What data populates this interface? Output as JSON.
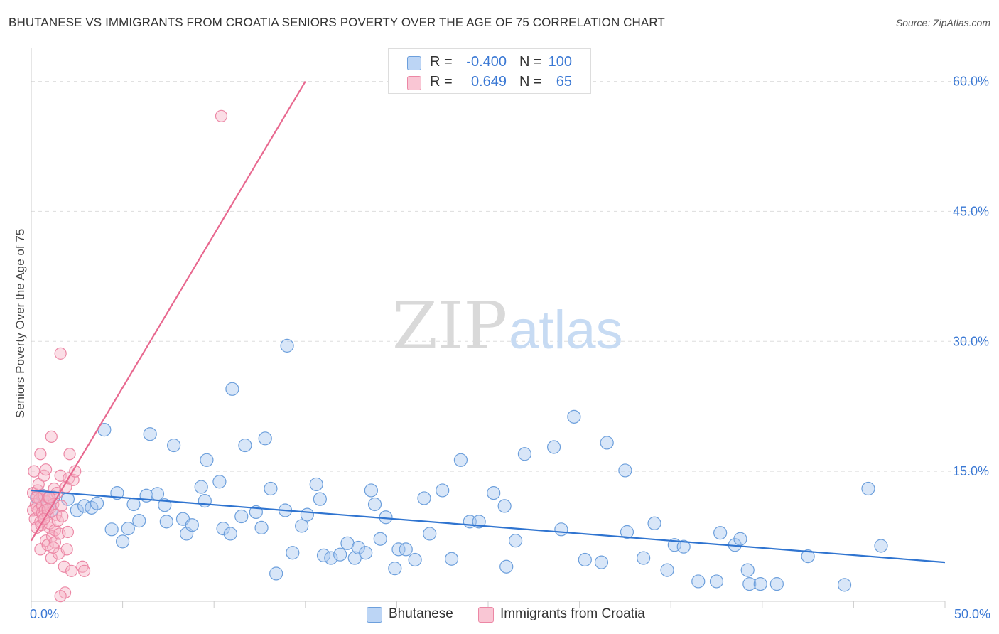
{
  "title": "BHUTANESE VS IMMIGRANTS FROM CROATIA SENIORS POVERTY OVER THE AGE OF 75 CORRELATION CHART",
  "source": "Source: ZipAtlas.com",
  "watermark": {
    "zip": "ZIP",
    "atlas": "atlas"
  },
  "legend": {
    "rows": [
      {
        "r_label": "R =",
        "r_value": "-0.400",
        "n_label": "N =",
        "n_value": "100"
      },
      {
        "r_label": "R =",
        "r_value": "0.649",
        "n_label": "N =",
        "n_value": "65"
      }
    ]
  },
  "bottom_legend": [
    "Bhutanese",
    "Immigrants from Croatia"
  ],
  "colors": {
    "blue_fill": "#a9c8f0",
    "blue_stroke": "#6c9fdc",
    "blue_line": "#2f74d0",
    "pink_fill": "#f7b6c8",
    "pink_stroke": "#ec87a5",
    "pink_line": "#e8688f",
    "tick_label": "#3a78d4",
    "grid": "#dddddd"
  },
  "chart_data": {
    "type": "scatter",
    "title": "BHUTANESE VS IMMIGRANTS FROM CROATIA SENIORS POVERTY OVER THE AGE OF 75 CORRELATION CHART",
    "xlabel": "",
    "ylabel": "Seniors Poverty Over the Age of 75",
    "xlim": [
      0,
      50
    ],
    "ylim": [
      0,
      63
    ],
    "x_tick_labels": [
      "0.0%",
      "50.0%"
    ],
    "y_ticks": [
      15,
      30,
      45,
      60
    ],
    "y_tick_labels": [
      "15.0%",
      "30.0%",
      "45.0%",
      "60.0%"
    ],
    "series": [
      {
        "name": "Bhutanese",
        "R": -0.4,
        "N": 100,
        "trend": {
          "x": [
            0,
            50
          ],
          "y": [
            12.8,
            4.5
          ]
        },
        "points": [
          [
            0.3,
            12.0
          ],
          [
            0.6,
            12.2
          ],
          [
            0.9,
            11.0
          ],
          [
            1.1,
            10.5
          ],
          [
            1.2,
            12.0
          ],
          [
            2.0,
            11.8
          ],
          [
            2.5,
            10.5
          ],
          [
            2.9,
            11.0
          ],
          [
            3.3,
            10.8
          ],
          [
            3.6,
            11.3
          ],
          [
            4.0,
            19.8
          ],
          [
            4.4,
            8.3
          ],
          [
            4.7,
            12.5
          ],
          [
            5.0,
            6.9
          ],
          [
            5.3,
            8.4
          ],
          [
            5.6,
            11.2
          ],
          [
            5.9,
            9.3
          ],
          [
            6.3,
            12.2
          ],
          [
            6.5,
            19.3
          ],
          [
            6.9,
            12.4
          ],
          [
            7.3,
            11.1
          ],
          [
            7.4,
            9.2
          ],
          [
            7.8,
            18.0
          ],
          [
            8.3,
            9.5
          ],
          [
            8.5,
            7.8
          ],
          [
            8.8,
            8.8
          ],
          [
            9.3,
            13.2
          ],
          [
            9.5,
            11.6
          ],
          [
            9.6,
            16.3
          ],
          [
            10.3,
            13.8
          ],
          [
            10.5,
            8.4
          ],
          [
            10.9,
            7.8
          ],
          [
            11.0,
            24.5
          ],
          [
            11.5,
            9.8
          ],
          [
            11.7,
            18.0
          ],
          [
            12.3,
            10.3
          ],
          [
            12.6,
            8.5
          ],
          [
            12.8,
            18.8
          ],
          [
            13.1,
            13.0
          ],
          [
            13.4,
            3.2
          ],
          [
            13.9,
            10.5
          ],
          [
            14.0,
            29.5
          ],
          [
            14.3,
            5.6
          ],
          [
            14.8,
            8.7
          ],
          [
            15.1,
            10.0
          ],
          [
            15.6,
            13.5
          ],
          [
            15.8,
            11.8
          ],
          [
            16.0,
            5.3
          ],
          [
            16.4,
            5.0
          ],
          [
            16.9,
            5.4
          ],
          [
            17.3,
            6.7
          ],
          [
            17.7,
            5.0
          ],
          [
            17.9,
            6.2
          ],
          [
            18.3,
            5.6
          ],
          [
            18.6,
            12.8
          ],
          [
            18.8,
            11.2
          ],
          [
            19.1,
            7.2
          ],
          [
            19.4,
            9.7
          ],
          [
            19.9,
            3.8
          ],
          [
            20.1,
            6.0
          ],
          [
            20.5,
            6.0
          ],
          [
            21.0,
            4.8
          ],
          [
            21.5,
            11.9
          ],
          [
            21.8,
            7.8
          ],
          [
            22.5,
            12.8
          ],
          [
            23.0,
            4.9
          ],
          [
            23.5,
            16.3
          ],
          [
            24.0,
            9.2
          ],
          [
            24.5,
            9.2
          ],
          [
            25.3,
            12.5
          ],
          [
            25.9,
            11.0
          ],
          [
            26.0,
            4.0
          ],
          [
            26.5,
            7.0
          ],
          [
            27.0,
            17.0
          ],
          [
            28.6,
            17.8
          ],
          [
            29.0,
            8.3
          ],
          [
            29.7,
            21.3
          ],
          [
            30.3,
            4.8
          ],
          [
            31.2,
            4.5
          ],
          [
            31.5,
            18.3
          ],
          [
            32.5,
            15.1
          ],
          [
            32.6,
            8.0
          ],
          [
            33.5,
            5.0
          ],
          [
            34.1,
            9.0
          ],
          [
            34.8,
            3.6
          ],
          [
            35.2,
            6.5
          ],
          [
            35.7,
            6.3
          ],
          [
            36.5,
            2.3
          ],
          [
            37.5,
            2.3
          ],
          [
            37.7,
            7.9
          ],
          [
            38.5,
            6.5
          ],
          [
            38.8,
            7.2
          ],
          [
            39.2,
            3.6
          ],
          [
            39.3,
            2.0
          ],
          [
            39.9,
            2.0
          ],
          [
            40.8,
            2.0
          ],
          [
            42.5,
            5.2
          ],
          [
            44.5,
            1.9
          ],
          [
            45.8,
            13.0
          ],
          [
            46.5,
            6.4
          ]
        ]
      },
      {
        "name": "Immigrants from Croatia",
        "R": 0.649,
        "N": 65,
        "trend": {
          "x": [
            0,
            15
          ],
          "y": [
            7.0,
            60.0
          ]
        },
        "points": [
          [
            0.1,
            10.5
          ],
          [
            0.1,
            12.5
          ],
          [
            0.15,
            15.0
          ],
          [
            0.2,
            9.5
          ],
          [
            0.25,
            11.2
          ],
          [
            0.3,
            8.5
          ],
          [
            0.3,
            10.8
          ],
          [
            0.35,
            12.8
          ],
          [
            0.4,
            13.5
          ],
          [
            0.4,
            10.5
          ],
          [
            0.45,
            11.8
          ],
          [
            0.5,
            9.2
          ],
          [
            0.5,
            6.0
          ],
          [
            0.55,
            8.8
          ],
          [
            0.6,
            11.0
          ],
          [
            0.6,
            10.2
          ],
          [
            0.65,
            9.8
          ],
          [
            0.7,
            12.2
          ],
          [
            0.7,
            14.5
          ],
          [
            0.75,
            10.5
          ],
          [
            0.8,
            15.2
          ],
          [
            0.8,
            7.0
          ],
          [
            0.85,
            11.5
          ],
          [
            0.9,
            10.0
          ],
          [
            0.9,
            6.5
          ],
          [
            0.95,
            12.0
          ],
          [
            1.0,
            8.5
          ],
          [
            1.0,
            9.0
          ],
          [
            1.05,
            10.8
          ],
          [
            1.1,
            19.0
          ],
          [
            1.1,
            5.0
          ],
          [
            1.15,
            7.5
          ],
          [
            1.2,
            11.2
          ],
          [
            1.25,
            13.0
          ],
          [
            1.3,
            8.2
          ],
          [
            1.3,
            6.8
          ],
          [
            1.35,
            10.0
          ],
          [
            1.4,
            12.5
          ],
          [
            1.45,
            9.3
          ],
          [
            1.5,
            5.5
          ],
          [
            1.55,
            7.8
          ],
          [
            1.6,
            14.5
          ],
          [
            1.65,
            11.0
          ],
          [
            1.7,
            9.8
          ],
          [
            1.8,
            4.0
          ],
          [
            1.85,
            1.0
          ],
          [
            1.9,
            13.2
          ],
          [
            1.95,
            6.0
          ],
          [
            2.0,
            8.0
          ],
          [
            2.05,
            14.2
          ],
          [
            2.1,
            17.0
          ],
          [
            2.2,
            3.5
          ],
          [
            2.3,
            14.0
          ],
          [
            0.5,
            17.0
          ],
          [
            1.6,
            28.6
          ],
          [
            0.9,
            10.6
          ],
          [
            1.2,
            6.2
          ],
          [
            0.3,
            12.0
          ],
          [
            0.7,
            9.5
          ],
          [
            1.0,
            12.0
          ],
          [
            1.6,
            0.6
          ],
          [
            2.4,
            15.0
          ],
          [
            2.8,
            4.0
          ],
          [
            2.9,
            3.5
          ],
          [
            10.4,
            56.0
          ]
        ]
      }
    ]
  }
}
